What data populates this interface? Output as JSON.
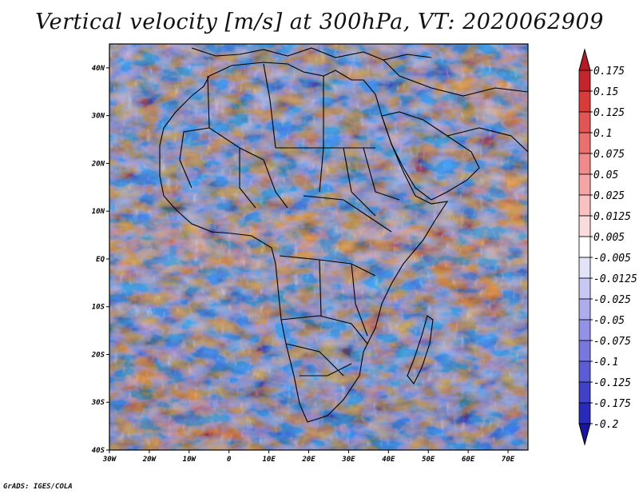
{
  "title": "Vertical velocity [m/s] at 300hPa, VT: 2020062909",
  "footer": "GrADS: IGES/COLA",
  "map": {
    "projection": "latlon",
    "lon_range": [
      -30,
      75
    ],
    "lat_range": [
      -40,
      45
    ],
    "lon_ticks": [
      "30W",
      "20W",
      "10W",
      "0",
      "10E",
      "20E",
      "30E",
      "40E",
      "50E",
      "60E",
      "70E"
    ],
    "lat_ticks": [
      "40N",
      "30N",
      "20N",
      "10N",
      "EQ",
      "10S",
      "20S",
      "30S",
      "40S"
    ],
    "field": "vertical velocity",
    "units": "m/s",
    "level": "300hPa",
    "boundaries": "country borders and coastlines (black)"
  },
  "colorbar": {
    "labels": [
      "0.175",
      "0.15",
      "0.125",
      "0.1",
      "0.075",
      "0.05",
      "0.025",
      "0.0125",
      "0.005",
      "-0.005",
      "-0.0125",
      "-0.025",
      "-0.05",
      "-0.075",
      "-0.1",
      "-0.125",
      "-0.175",
      "-0.2"
    ],
    "colors": [
      "#c4242b",
      "#d93a3a",
      "#e25555",
      "#ea7070",
      "#f08b8b",
      "#f4a6a6",
      "#f8c2c2",
      "#fbdcdc",
      "#ffffff",
      "#e3e3f8",
      "#c8c8f2",
      "#adadec",
      "#9292e6",
      "#7777de",
      "#5c5cd4",
      "#4141c8",
      "#2a2aba",
      "#1c1ca8"
    ],
    "top_arrow_color": "#b41c24",
    "bottom_arrow_color": "#1a14a0"
  }
}
